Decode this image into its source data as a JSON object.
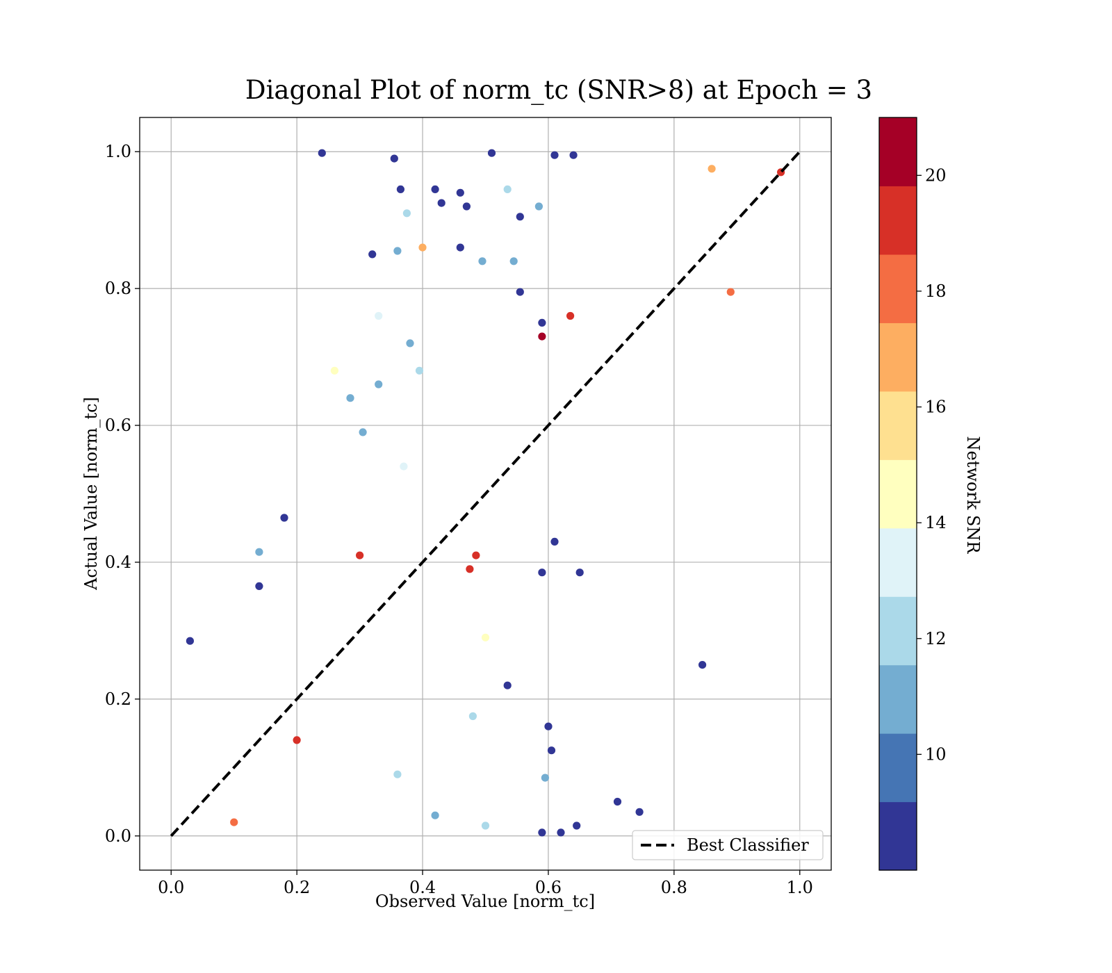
{
  "chart_data": {
    "type": "scatter",
    "title": "Diagonal Plot of norm_tc (SNR>8) at Epoch = 3",
    "xlabel": "Observed Value [norm_tc]",
    "ylabel": "Actual Value [norm_tc]",
    "xlim": [
      -0.05,
      1.05
    ],
    "ylim": [
      -0.05,
      1.05
    ],
    "xticks": [
      "0.0",
      "0.2",
      "0.4",
      "0.6",
      "0.8",
      "1.0"
    ],
    "yticks": [
      "0.0",
      "0.2",
      "0.4",
      "0.6",
      "0.8",
      "1.0"
    ],
    "grid": true,
    "legend": {
      "placement": "lower right",
      "entries": [
        "Best Classifier"
      ]
    },
    "reference_line": {
      "name": "Best Classifier",
      "style": "dashed",
      "color": "#000000",
      "x": [
        0,
        1
      ],
      "y": [
        0,
        1
      ]
    },
    "colorbar": {
      "label": "Network SNR",
      "range": [
        8,
        21
      ],
      "ticks": [
        "10",
        "12",
        "14",
        "16",
        "18",
        "20"
      ],
      "colors": [
        "#313695",
        "#4575b4",
        "#74add1",
        "#abd9e9",
        "#e0f3f8",
        "#ffffbf",
        "#fee090",
        "#fdae61",
        "#f46d43",
        "#d73027",
        "#a50026"
      ]
    },
    "series": [
      {
        "name": "Network SNR",
        "columns": [
          "x",
          "y",
          "snr"
        ],
        "points": [
          [
            0.24,
            0.998,
            8.5
          ],
          [
            0.355,
            0.99,
            8.5
          ],
          [
            0.51,
            0.998,
            8.5
          ],
          [
            0.61,
            0.995,
            8.5
          ],
          [
            0.64,
            0.995,
            8.5
          ],
          [
            0.365,
            0.945,
            8.5
          ],
          [
            0.375,
            0.91,
            12.4
          ],
          [
            0.42,
            0.945,
            8.5
          ],
          [
            0.46,
            0.94,
            8.5
          ],
          [
            0.43,
            0.925,
            8.5
          ],
          [
            0.47,
            0.92,
            8.5
          ],
          [
            0.535,
            0.945,
            12.4
          ],
          [
            0.555,
            0.905,
            8.5
          ],
          [
            0.585,
            0.92,
            10.5
          ],
          [
            0.32,
            0.85,
            8.5
          ],
          [
            0.36,
            0.855,
            10.5
          ],
          [
            0.4,
            0.86,
            16.4
          ],
          [
            0.46,
            0.86,
            8.5
          ],
          [
            0.495,
            0.84,
            11.5
          ],
          [
            0.545,
            0.84,
            10.5
          ],
          [
            0.555,
            0.795,
            8.5
          ],
          [
            0.59,
            0.75,
            8.5
          ],
          [
            0.33,
            0.76,
            13.5
          ],
          [
            0.38,
            0.72,
            10.5
          ],
          [
            0.395,
            0.68,
            12.4
          ],
          [
            0.26,
            0.68,
            14.2
          ],
          [
            0.285,
            0.64,
            10.5
          ],
          [
            0.33,
            0.66,
            10.5
          ],
          [
            0.305,
            0.59,
            10.5
          ],
          [
            0.59,
            0.73,
            21.0
          ],
          [
            0.635,
            0.76,
            19.5
          ],
          [
            0.03,
            0.285,
            8.5
          ],
          [
            0.18,
            0.465,
            8.5
          ],
          [
            0.14,
            0.415,
            10.5
          ],
          [
            0.14,
            0.365,
            8.5
          ],
          [
            0.37,
            0.54,
            13.5
          ],
          [
            0.61,
            0.43,
            8.5
          ],
          [
            0.65,
            0.385,
            8.5
          ],
          [
            0.59,
            0.385,
            8.5
          ],
          [
            0.845,
            0.25,
            8.5
          ],
          [
            0.535,
            0.22,
            8.5
          ],
          [
            0.6,
            0.16,
            8.5
          ],
          [
            0.605,
            0.125,
            8.5
          ],
          [
            0.595,
            0.085,
            10.5
          ],
          [
            0.5,
            0.29,
            14.2
          ],
          [
            0.71,
            0.05,
            8.5
          ],
          [
            0.745,
            0.035,
            8.5
          ],
          [
            0.59,
            0.005,
            8.5
          ],
          [
            0.62,
            0.005,
            8.5
          ],
          [
            0.645,
            0.015,
            8.5
          ],
          [
            0.36,
            0.09,
            12.4
          ],
          [
            0.48,
            0.175,
            12.4
          ],
          [
            0.42,
            0.03,
            11.5
          ],
          [
            0.5,
            0.015,
            12.4
          ],
          [
            0.2,
            0.14,
            19.0
          ],
          [
            0.3,
            0.41,
            19.5
          ],
          [
            0.485,
            0.41,
            19.5
          ],
          [
            0.475,
            0.39,
            19.0
          ],
          [
            0.1,
            0.02,
            18.0
          ],
          [
            0.97,
            0.97,
            19.0
          ],
          [
            0.89,
            0.795,
            18.0
          ],
          [
            0.86,
            0.975,
            17.0
          ]
        ]
      }
    ]
  }
}
